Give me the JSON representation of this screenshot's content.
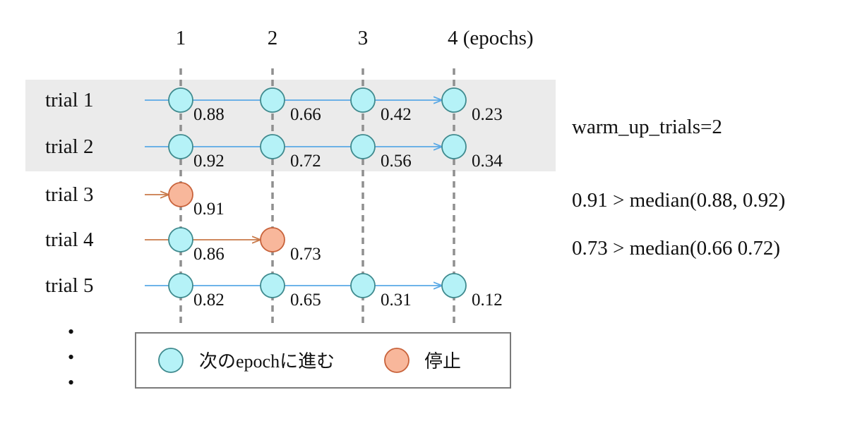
{
  "epochs": {
    "labels": [
      "1",
      "2",
      "3",
      "4 (epochs)"
    ]
  },
  "trials": [
    {
      "label": "trial 1",
      "warm_up": true,
      "values": [
        "0.88",
        "0.66",
        "0.42",
        "0.23"
      ],
      "pruned_at": null
    },
    {
      "label": "trial 2",
      "warm_up": true,
      "values": [
        "0.92",
        "0.72",
        "0.56",
        "0.34"
      ],
      "pruned_at": null
    },
    {
      "label": "trial 3",
      "warm_up": false,
      "values": [
        "0.91"
      ],
      "pruned_at": 1
    },
    {
      "label": "trial 4",
      "warm_up": false,
      "values": [
        "0.86",
        "0.73"
      ],
      "pruned_at": 2
    },
    {
      "label": "trial 5",
      "warm_up": false,
      "values": [
        "0.82",
        "0.65",
        "0.31",
        "0.12"
      ],
      "pruned_at": null
    }
  ],
  "notes": {
    "warm_up": "warm_up_trials=2",
    "prune_trial3": "0.91 > median(0.88, 0.92)",
    "prune_trial4": "0.73 > median(0.66 0.72)"
  },
  "ellipsis": [
    "•",
    "•",
    "•"
  ],
  "legend": {
    "continue_label": "次のepochに進む",
    "stop_label": "停止"
  },
  "colors": {
    "continue_fill": "#b5f2f7",
    "continue_stroke": "#3f8a8e",
    "stop_fill": "#f8b79b",
    "stop_stroke": "#c8623a",
    "blue_arrow": "#5aa9e6",
    "orange_arrow": "#c97a4a",
    "warm_up_band": "#ebebeb",
    "dashed_line": "#8f8f8f"
  }
}
